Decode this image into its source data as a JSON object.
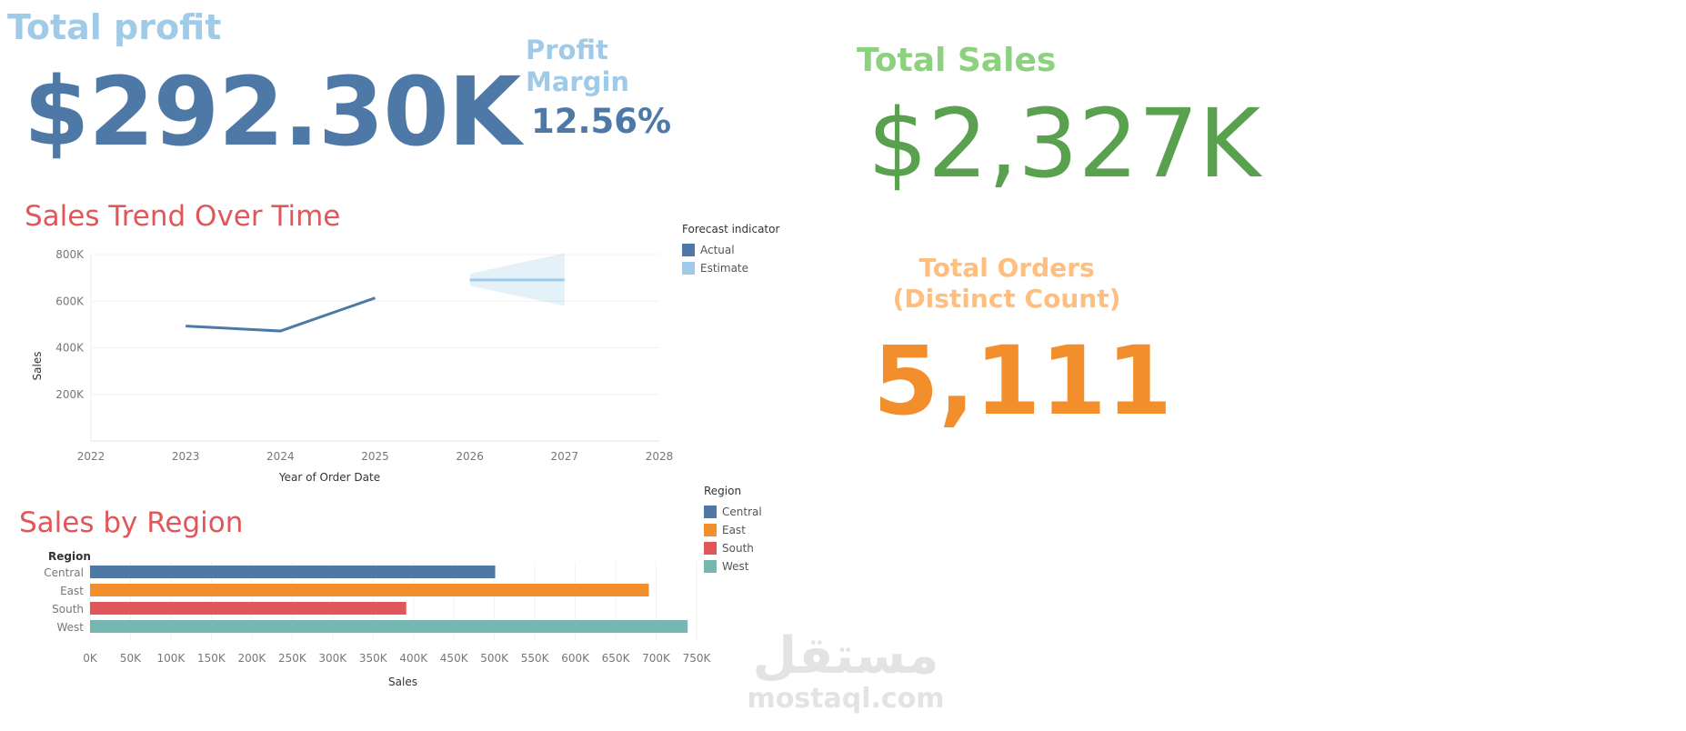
{
  "kpis": {
    "profit_title": "Total profit",
    "profit_value": "$292.30K",
    "margin_title": "Profit Margin",
    "margin_value": "12.56%",
    "sales_title": "Total Sales",
    "sales_value": "$2,327K",
    "orders_title": "Total Orders (Distinct Count)",
    "orders_value": "5,111"
  },
  "trend": {
    "title": "Sales Trend Over Time",
    "legend_title": "Forecast indicator",
    "legend": [
      {
        "label": "Actual",
        "color": "#4e79a7"
      },
      {
        "label": "Estimate",
        "color": "#a0cbe8"
      }
    ]
  },
  "region": {
    "title": "Sales by Region",
    "legend_title": "Region",
    "legend": [
      {
        "label": "Central",
        "color": "#4e79a7"
      },
      {
        "label": "East",
        "color": "#f28e2b"
      },
      {
        "label": "South",
        "color": "#e15759"
      },
      {
        "label": "West",
        "color": "#76b7b2"
      }
    ]
  },
  "watermark": {
    "arabic": "مستقل",
    "latin": "mostaql.com"
  },
  "chart_data": [
    {
      "type": "line",
      "title": "Sales Trend Over Time",
      "xlabel": "Year of Order Date",
      "ylabel": "Sales",
      "xlim": [
        2022,
        2028
      ],
      "ylim": [
        0,
        800000
      ],
      "x_ticks": [
        "2022",
        "2023",
        "2024",
        "2025",
        "2026",
        "2027",
        "2028"
      ],
      "y_ticks": [
        "200K",
        "400K",
        "600K",
        "800K"
      ],
      "grid": true,
      "legend_position": "right",
      "series": [
        {
          "name": "Actual",
          "color": "#4e79a7",
          "x": [
            2023,
            2024,
            2025
          ],
          "values": [
            493000,
            472000,
            614000
          ]
        },
        {
          "name": "Estimate",
          "color": "#a0cbe8",
          "x": [
            2026,
            2027
          ],
          "values": [
            691000,
            691000
          ],
          "lower": [
            666000,
            580000
          ],
          "upper": [
            718000,
            806000
          ]
        }
      ]
    },
    {
      "type": "bar",
      "orientation": "horizontal",
      "title": "Sales by Region",
      "xlabel": "Sales",
      "ylabel": "Region",
      "categories": [
        "Central",
        "East",
        "South",
        "West"
      ],
      "values": [
        501000,
        691000,
        391000,
        739000
      ],
      "colors": [
        "#4e79a7",
        "#f28e2b",
        "#e15759",
        "#76b7b2"
      ],
      "xlim": [
        0,
        750000
      ],
      "x_ticks": [
        "0K",
        "50K",
        "100K",
        "150K",
        "200K",
        "250K",
        "300K",
        "350K",
        "400K",
        "450K",
        "500K",
        "550K",
        "600K",
        "650K",
        "700K",
        "750K"
      ],
      "legend_position": "right"
    }
  ]
}
